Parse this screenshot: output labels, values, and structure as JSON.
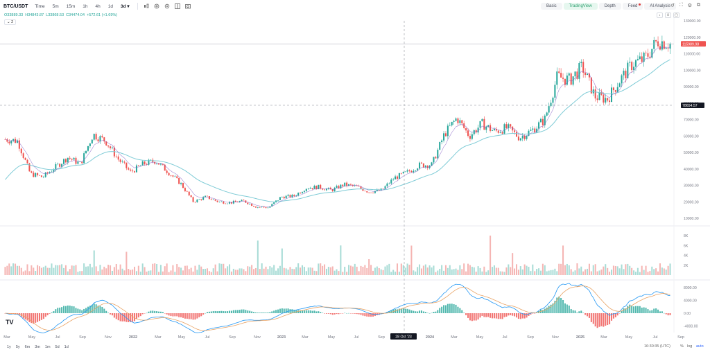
{
  "toolbar": {
    "symbol": "BTC/USDT",
    "timeframes": [
      "Time",
      "5m",
      "15m",
      "1h",
      "4h",
      "1d",
      "3d"
    ],
    "active_timeframe": "3d"
  },
  "tabs": [
    "Basic",
    "TradingView",
    "Depth",
    "Feed",
    "AI Analysis"
  ],
  "active_tab": "TradingView",
  "ohlc": {
    "open": "O33889.33",
    "high": "H34843.87",
    "low": "L33868.53",
    "close": "C34474.04",
    "change": "+572.61 (+1.69%)"
  },
  "indicator_count": "2",
  "price_axis": {
    "labels": [
      "130000.00",
      "120000.00",
      "110000.00",
      "100000.00",
      "90000.00",
      "80000.00",
      "70000.00",
      "60000.00",
      "50000.00",
      "40000.00",
      "30000.00",
      "20000.00",
      "10000.00"
    ],
    "current_price": "115989.98",
    "crosshair_price": "78654.57"
  },
  "volume_axis": {
    "labels": [
      "8K",
      "6K",
      "4K",
      "2K"
    ]
  },
  "macd_axis": {
    "labels": [
      "8000.00",
      "4000.00",
      "0.00",
      "-4000.00"
    ]
  },
  "time_axis": {
    "labels": [
      "Mar",
      "May",
      "Jul",
      "Sep",
      "Nov",
      "2022",
      "Mar",
      "May",
      "Jul",
      "Sep",
      "Nov",
      "2023",
      "Mar",
      "May",
      "Jul",
      "Sep",
      "2024",
      "Mar",
      "May",
      "Jul",
      "Sep",
      "Nov",
      "2025",
      "Mar",
      "May",
      "Jul",
      "Sep"
    ],
    "crosshair_date": "28 Oct '23"
  },
  "bottom": {
    "ranges": [
      "1y",
      "5y",
      "6m",
      "3m",
      "1m",
      "5d",
      "1d"
    ],
    "clock": "16:30:35 (UTC)",
    "scale_options": [
      "%",
      "log",
      "auto"
    ],
    "active_scale": "auto"
  },
  "logo": "TV",
  "colors": {
    "up": "#26a69a",
    "down": "#ef5350",
    "ma": "#7ecbd6",
    "macd": "#2196f3",
    "signal": "#e8a263",
    "price_label": "#ef5350",
    "crosshair_label": "#131722"
  },
  "chart_data": {
    "type": "candlestick",
    "price_series_approx": {
      "x": [
        "2021-03",
        "2021-04",
        "2021-05",
        "2021-06",
        "2021-07",
        "2021-08",
        "2021-09",
        "2021-10",
        "2021-11",
        "2021-12",
        "2022-01",
        "2022-02",
        "2022-03",
        "2022-04",
        "2022-05",
        "2022-06",
        "2022-07",
        "2022-08",
        "2022-09",
        "2022-10",
        "2022-11",
        "2022-12",
        "2023-01",
        "2023-02",
        "2023-03",
        "2023-04",
        "2023-05",
        "2023-06",
        "2023-07",
        "2023-08",
        "2023-09",
        "2023-10",
        "2023-11",
        "2023-12",
        "2024-01",
        "2024-02",
        "2024-03",
        "2024-04",
        "2024-05",
        "2024-06",
        "2024-07",
        "2024-08",
        "2024-09",
        "2024-10",
        "2024-11",
        "2024-12",
        "2025-01",
        "2025-02",
        "2025-03",
        "2025-04",
        "2025-05",
        "2025-06",
        "2025-07",
        "2025-08"
      ],
      "close": [
        58000,
        57000,
        37000,
        35000,
        41000,
        47000,
        43000,
        61000,
        57000,
        46000,
        38000,
        43000,
        45000,
        38000,
        31000,
        20000,
        23000,
        20000,
        19500,
        20500,
        17000,
        16500,
        23000,
        23500,
        28500,
        29000,
        27000,
        30500,
        29200,
        26000,
        27000,
        34500,
        37700,
        42300,
        42500,
        61000,
        71000,
        60000,
        67500,
        62700,
        65000,
        59000,
        63500,
        70000,
        96000,
        94000,
        102000,
        84000,
        82500,
        94000,
        104000,
        107000,
        118000,
        116000
      ]
    },
    "moving_average": "light-blue",
    "volume_max": 8000,
    "macd_range": [
      -4000,
      8000
    ],
    "ylim": [
      10000,
      130000
    ]
  }
}
